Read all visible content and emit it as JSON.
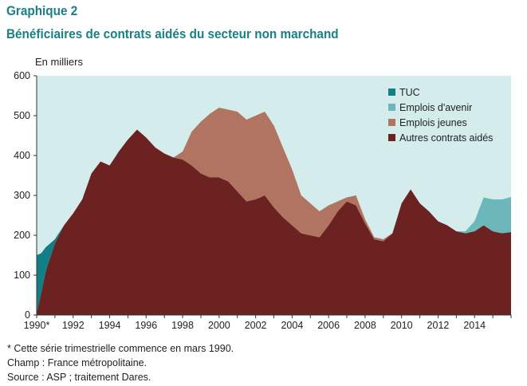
{
  "header": {
    "label": "Graphique 2",
    "title": "Bénéficiaires de contrats aidés du secteur non marchand"
  },
  "notes": {
    "footnote": "* Cette série trimestrielle commence en mars 1990.",
    "champ": "Champ : France métropolitaine.",
    "source": "Source : ASP ; traitement Dares."
  },
  "colors": {
    "background": "#d4ecec",
    "TUC": "#127f86",
    "Emplois d'avenir": "#6bb7ba",
    "Emplois jeunes": "#b07460",
    "Autres contrats aidés": "#6b2220"
  },
  "chart_data": {
    "type": "area",
    "stacked": true,
    "ylabel": "En milliers",
    "ylim": [
      0,
      600
    ],
    "yticks": [
      0,
      100,
      200,
      300,
      400,
      500,
      600
    ],
    "xlim": [
      1990,
      2016
    ],
    "xtick_labels": [
      "1990*",
      "1992",
      "1994",
      "1996",
      "1998",
      "2000",
      "2002",
      "2004",
      "2006",
      "2008",
      "2010",
      "2012",
      "2014"
    ],
    "legend_position": "top-right",
    "x": [
      1990,
      1990.25,
      1990.5,
      1991,
      1991.5,
      1992,
      1992.5,
      1993,
      1993.5,
      1994,
      1994.5,
      1995,
      1995.5,
      1996,
      1996.5,
      1997,
      1997.5,
      1998,
      1998.5,
      1999,
      1999.5,
      2000,
      2000.5,
      2001,
      2001.5,
      2002,
      2002.5,
      2003,
      2003.5,
      2004,
      2004.5,
      2005,
      2005.5,
      2006,
      2006.5,
      2007,
      2007.5,
      2008,
      2008.5,
      2009,
      2009.5,
      2010,
      2010.5,
      2011,
      2011.5,
      2012,
      2012.5,
      2013,
      2013.5,
      2014,
      2014.5,
      2015,
      2015.5,
      2016
    ],
    "series": [
      {
        "name": "Autres contrats aidés",
        "values": [
          5,
          55,
          110,
          180,
          225,
          255,
          290,
          355,
          385,
          375,
          410,
          440,
          465,
          445,
          420,
          405,
          395,
          390,
          375,
          355,
          345,
          345,
          335,
          310,
          285,
          290,
          300,
          270,
          245,
          225,
          205,
          200,
          195,
          225,
          260,
          285,
          275,
          230,
          190,
          185,
          205,
          280,
          315,
          280,
          260,
          235,
          225,
          210,
          205,
          210,
          225,
          210,
          205,
          208
        ]
      },
      {
        "name": "Emplois jeunes",
        "values": [
          0,
          0,
          0,
          0,
          0,
          0,
          0,
          0,
          0,
          0,
          0,
          0,
          0,
          0,
          0,
          0,
          0,
          20,
          85,
          130,
          160,
          175,
          180,
          200,
          205,
          210,
          210,
          205,
          175,
          140,
          95,
          80,
          65,
          50,
          25,
          10,
          25,
          10,
          5,
          5,
          0,
          0,
          0,
          0,
          0,
          0,
          0,
          0,
          0,
          0,
          0,
          0,
          0,
          0
        ]
      },
      {
        "name": "Emplois d'avenir",
        "values": [
          0,
          0,
          0,
          0,
          0,
          0,
          0,
          0,
          0,
          0,
          0,
          0,
          0,
          0,
          0,
          0,
          0,
          0,
          0,
          0,
          0,
          0,
          0,
          0,
          0,
          0,
          0,
          0,
          0,
          0,
          0,
          0,
          0,
          0,
          0,
          0,
          0,
          0,
          0,
          0,
          0,
          0,
          0,
          0,
          0,
          0,
          0,
          0,
          5,
          25,
          70,
          80,
          85,
          88
        ]
      },
      {
        "name": "TUC",
        "values": [
          145,
          100,
          60,
          10,
          0,
          0,
          0,
          0,
          0,
          0,
          0,
          0,
          0,
          0,
          0,
          0,
          0,
          0,
          0,
          0,
          0,
          0,
          0,
          0,
          0,
          0,
          0,
          0,
          0,
          0,
          0,
          0,
          0,
          0,
          0,
          0,
          0,
          0,
          0,
          0,
          0,
          0,
          0,
          0,
          0,
          0,
          0,
          0,
          0,
          0,
          0,
          0,
          0,
          0
        ]
      }
    ],
    "legend_order": [
      "TUC",
      "Emplois d'avenir",
      "Emplois jeunes",
      "Autres contrats aidés"
    ]
  }
}
